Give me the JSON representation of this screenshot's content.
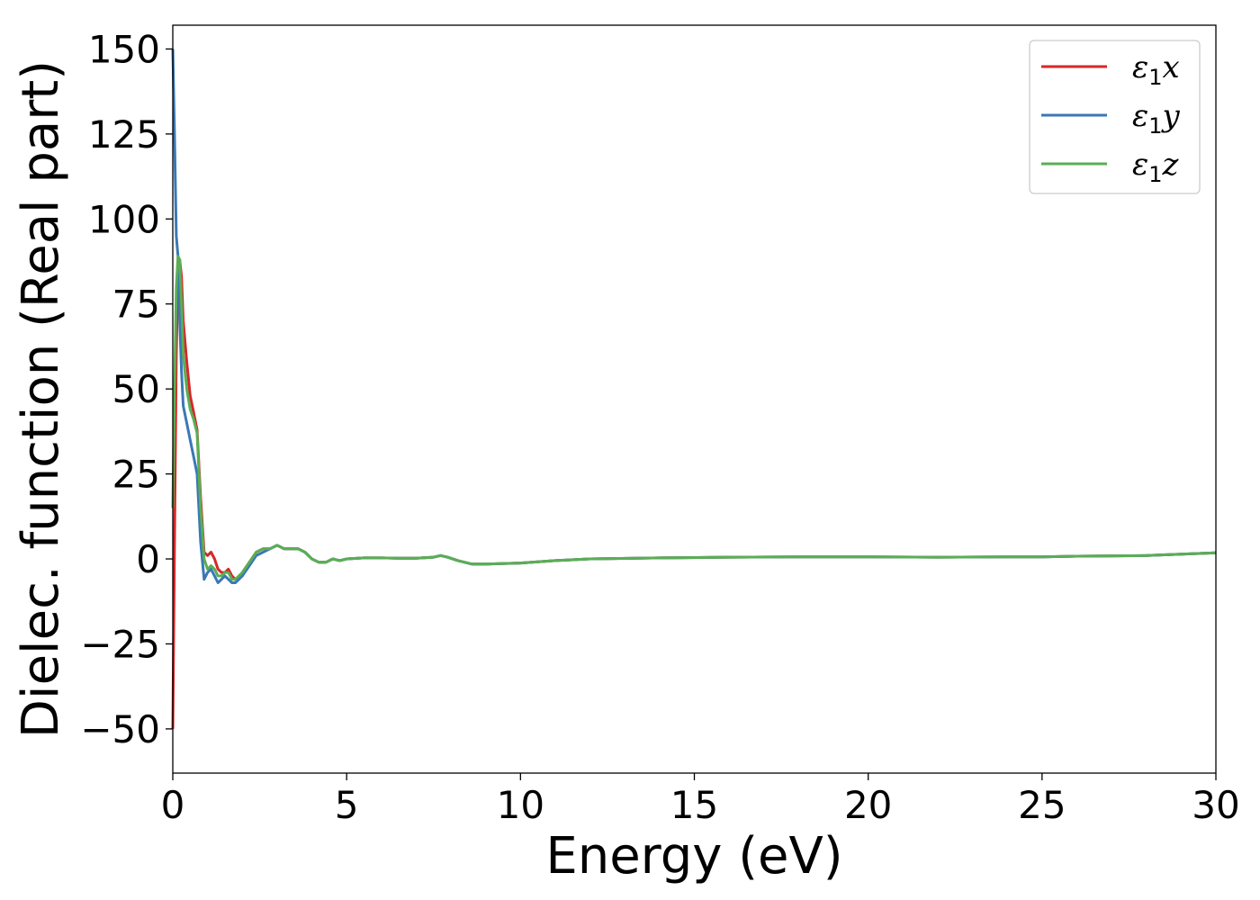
{
  "chart_data": {
    "type": "line",
    "xlabel": "Energy (eV)",
    "ylabel": "Dielec. function (Real part)",
    "xlim": [
      0,
      30
    ],
    "ylim": [
      -63,
      157
    ],
    "xticks": [
      0,
      5,
      10,
      15,
      20,
      25,
      30
    ],
    "xtick_labels": [
      "0",
      "5",
      "10",
      "15",
      "20",
      "25",
      "30"
    ],
    "yticks": [
      -50,
      -25,
      0,
      25,
      50,
      75,
      100,
      125,
      150
    ],
    "ytick_labels": [
      "−50",
      "−25",
      "0",
      "25",
      "50",
      "75",
      "100",
      "125",
      "150"
    ],
    "grid": false,
    "legend_position": "top-right",
    "series": [
      {
        "name": "ε1x",
        "name_base": "ε",
        "name_sub": "1",
        "name_tail": "x",
        "color": "#d62728",
        "x": [
          0,
          0.05,
          0.1,
          0.15,
          0.2,
          0.25,
          0.3,
          0.4,
          0.5,
          0.6,
          0.7,
          0.8,
          0.9,
          1.0,
          1.1,
          1.2,
          1.3,
          1.4,
          1.5,
          1.6,
          1.7,
          1.8,
          1.9,
          2.0,
          2.2,
          2.4,
          2.6,
          2.8,
          3.0,
          3.2,
          3.4,
          3.6,
          3.8,
          4.0,
          4.2,
          4.4,
          4.6,
          4.8,
          5.0,
          5.5,
          6.0,
          6.5,
          7.0,
          7.5,
          7.7,
          7.9,
          8.2,
          8.6,
          9.0,
          10.0,
          11.0,
          12.0,
          14.0,
          16.0,
          18.0,
          20.0,
          22.0,
          24.0,
          25.0,
          26.0,
          28.0,
          30.0
        ],
        "y": [
          -50,
          5,
          60,
          85,
          88,
          83,
          70,
          58,
          48,
          43,
          38,
          18,
          2,
          1,
          2,
          0,
          -3,
          -4,
          -4,
          -3,
          -5,
          -6,
          -6,
          -4,
          -1,
          2,
          3,
          3,
          4,
          3,
          3,
          3,
          2,
          0,
          -1,
          -1,
          0,
          -0.5,
          0,
          0.3,
          0.3,
          0.2,
          0.2,
          0.5,
          1,
          0.5,
          -0.5,
          -1.5,
          -1.5,
          -1.2,
          -0.5,
          0,
          0.3,
          0.5,
          0.6,
          0.6,
          0.5,
          0.6,
          0.6,
          0.8,
          1.0,
          1.8
        ]
      },
      {
        "name": "ε1y",
        "name_base": "ε",
        "name_sub": "1",
        "name_tail": "y",
        "color": "#3a78b5",
        "x": [
          0,
          0.05,
          0.1,
          0.15,
          0.2,
          0.25,
          0.3,
          0.4,
          0.5,
          0.6,
          0.7,
          0.8,
          0.9,
          1.0,
          1.1,
          1.2,
          1.3,
          1.4,
          1.5,
          1.6,
          1.7,
          1.8,
          1.9,
          2.0,
          2.2,
          2.4,
          2.6,
          2.8,
          3.0,
          3.2,
          3.4,
          3.6,
          3.8,
          4.0,
          4.2,
          4.4,
          4.6,
          4.8,
          5.0,
          5.5,
          6.0,
          6.5,
          7.0,
          7.5,
          7.7,
          7.9,
          8.2,
          8.6,
          9.0,
          10.0,
          11.0,
          12.0,
          14.0,
          16.0,
          18.0,
          20.0,
          22.0,
          24.0,
          25.0,
          26.0,
          28.0,
          30.0
        ],
        "y": [
          150,
          125,
          95,
          89,
          70,
          55,
          45,
          40,
          35,
          30,
          25,
          5,
          -6,
          -4,
          -3,
          -5,
          -7,
          -6,
          -5,
          -6,
          -7,
          -7,
          -6,
          -5,
          -2,
          1,
          2,
          3,
          4,
          3,
          3,
          3,
          2,
          0,
          -1,
          -1,
          0,
          -0.5,
          0,
          0.3,
          0.3,
          0.2,
          0.2,
          0.5,
          1,
          0.5,
          -0.5,
          -1.5,
          -1.5,
          -1.2,
          -0.5,
          0,
          0.3,
          0.5,
          0.6,
          0.6,
          0.5,
          0.6,
          0.6,
          0.8,
          1.0,
          1.8
        ]
      },
      {
        "name": "ε1z",
        "name_base": "ε",
        "name_sub": "1",
        "name_tail": "z",
        "color": "#5aae55",
        "x": [
          0,
          0.05,
          0.1,
          0.15,
          0.2,
          0.25,
          0.3,
          0.4,
          0.5,
          0.6,
          0.7,
          0.8,
          0.9,
          1.0,
          1.1,
          1.2,
          1.3,
          1.4,
          1.5,
          1.6,
          1.7,
          1.8,
          1.9,
          2.0,
          2.2,
          2.4,
          2.6,
          2.8,
          3.0,
          3.2,
          3.4,
          3.6,
          3.8,
          4.0,
          4.2,
          4.4,
          4.6,
          4.8,
          5.0,
          5.5,
          6.0,
          6.5,
          7.0,
          7.5,
          7.7,
          7.9,
          8.2,
          8.6,
          9.0,
          10.0,
          11.0,
          12.0,
          14.0,
          16.0,
          18.0,
          20.0,
          22.0,
          24.0,
          25.0,
          26.0,
          28.0,
          30.0
        ],
        "y": [
          15,
          50,
          80,
          89,
          88,
          75,
          60,
          50,
          44,
          41,
          37,
          15,
          0,
          -3,
          -2,
          -3,
          -5,
          -5,
          -4,
          -4,
          -6,
          -6,
          -5,
          -4,
          -1,
          2,
          3,
          3,
          4,
          3,
          3,
          3,
          2,
          0,
          -1,
          -1,
          0,
          -0.5,
          0,
          0.3,
          0.3,
          0.2,
          0.2,
          0.5,
          1,
          0.5,
          -0.5,
          -1.5,
          -1.5,
          -1.2,
          -0.5,
          0,
          0.3,
          0.5,
          0.6,
          0.6,
          0.5,
          0.6,
          0.6,
          0.8,
          1.0,
          1.8
        ]
      }
    ]
  }
}
